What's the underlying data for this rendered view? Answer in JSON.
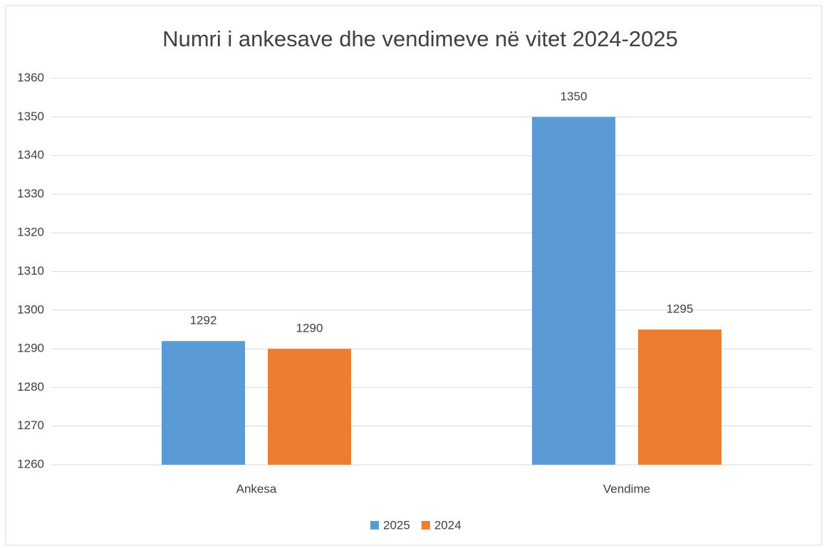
{
  "chart_data": {
    "type": "bar",
    "title": "Numri i ankesave dhe vendimeve në vitet 2024-2025",
    "categories": [
      "Ankesa",
      "Vendime"
    ],
    "series": [
      {
        "name": "2025",
        "color": "#5b9bd5",
        "values": [
          1292,
          1350
        ]
      },
      {
        "name": "2024",
        "color": "#ed7d31",
        "values": [
          1290,
          1295
        ]
      }
    ],
    "ylim": [
      1260,
      1360
    ],
    "yticks": [
      1260,
      1270,
      1280,
      1290,
      1300,
      1310,
      1320,
      1330,
      1340,
      1350,
      1360
    ],
    "grid": true,
    "legend": "bottom"
  }
}
